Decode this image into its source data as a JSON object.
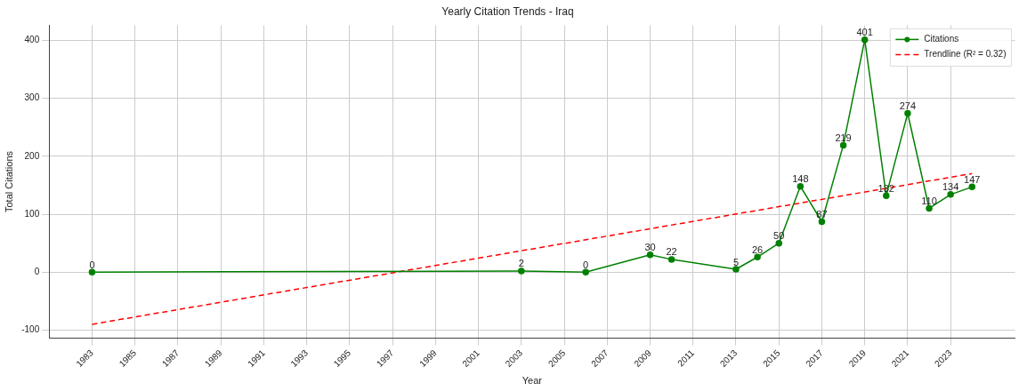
{
  "chart_data": {
    "type": "line",
    "title": "Yearly Citation Trends - Iraq",
    "xlabel": "Year",
    "ylabel": "Total Citations",
    "x": [
      1983,
      2003,
      2006,
      2009,
      2010,
      2013,
      2014,
      2015,
      2016,
      2017,
      2018,
      2019,
      2020,
      2021,
      2022,
      2023,
      2024
    ],
    "series": [
      {
        "name": "Citations",
        "color": "#008000",
        "values": [
          0,
          2,
          0,
          30,
          22,
          5,
          26,
          50,
          148,
          87,
          219,
          401,
          132,
          274,
          110,
          134,
          147
        ],
        "marker": "circle",
        "line_style": "solid",
        "data_labels": true
      },
      {
        "name": "Trendline (R² = 0.32)",
        "type": "line",
        "color": "#ff0000",
        "x": [
          1983,
          2024
        ],
        "values": [
          -90,
          170
        ],
        "marker": "none",
        "line_style": "dashed"
      }
    ],
    "xlim": [
      1981,
      2026
    ],
    "xticks": [
      1983,
      1985,
      1987,
      1989,
      1991,
      1993,
      1995,
      1997,
      1999,
      2001,
      2003,
      2005,
      2007,
      2009,
      2011,
      2013,
      2015,
      2017,
      2019,
      2021,
      2023
    ],
    "ylim": [
      -114,
      426
    ],
    "yticks": [
      -100,
      0,
      100,
      200,
      300,
      400
    ],
    "grid": true,
    "legend": "top right"
  }
}
